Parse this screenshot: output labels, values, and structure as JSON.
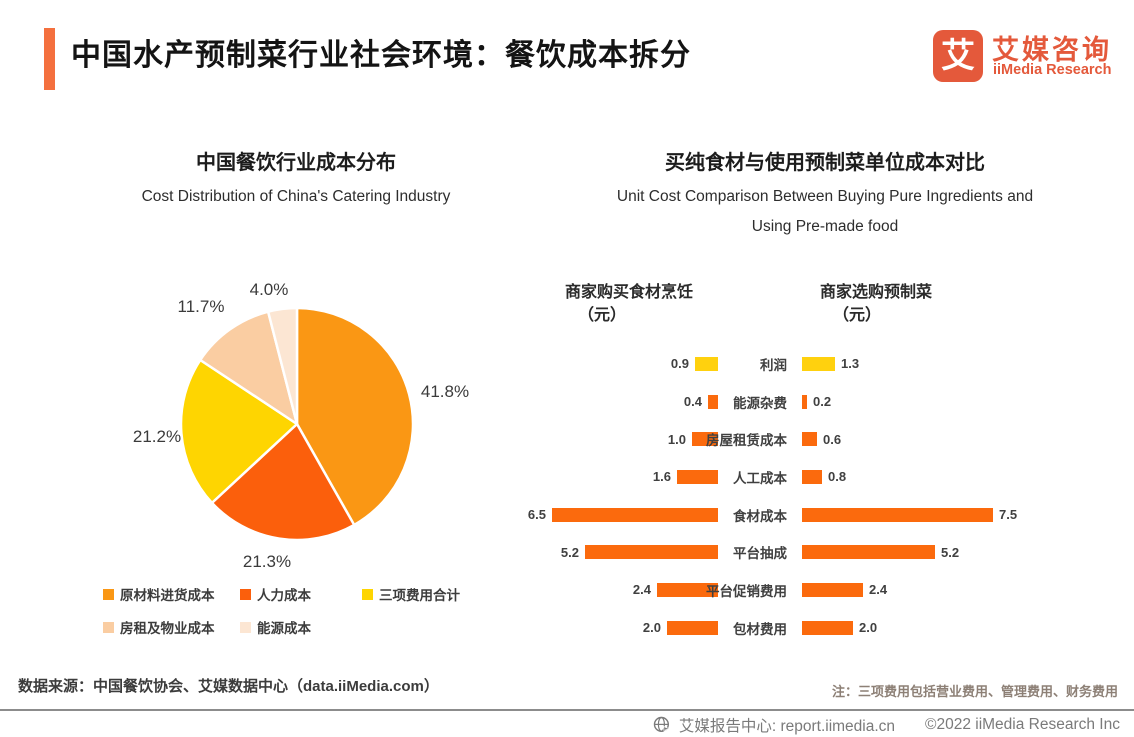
{
  "header": {
    "title": "中国水产预制菜行业社会环境：餐饮成本拆分",
    "logo": {
      "glyph": "艾",
      "name_cn": "艾媒咨询",
      "name_en": "iiMedia Research"
    }
  },
  "colors": {
    "accent": "#F4703E",
    "brand": "#E4593B",
    "bar_orange": "#FB6A0D",
    "bar_yellow": "#FFD10E"
  },
  "chart_data": [
    {
      "type": "pie",
      "title": "中国餐饮行业成本分布",
      "subtitle": "Cost Distribution of China's Catering Industry",
      "labels": [
        "原材料进货成本",
        "人力成本",
        "三项费用合计",
        "房租及物业成本",
        "能源成本"
      ],
      "values": [
        41.8,
        21.3,
        21.2,
        11.7,
        4.0
      ],
      "display_labels": [
        "41.8%",
        "21.3%",
        "21.2%",
        "11.7%",
        "4.0%"
      ],
      "colors": [
        "#FA9714",
        "#FB5F0C",
        "#FED501",
        "#FACDA2",
        "#FCE6D3"
      ],
      "start_angle_deg": 0,
      "direction": "clockwise",
      "legend_position": "bottom"
    },
    {
      "type": "bar",
      "subtype": "tornado",
      "title": "买纯食材与使用预制菜单位成本对比",
      "subtitle_lines": [
        "Unit Cost Comparison Between Buying Pure Ingredients and",
        "Using Pre-made food"
      ],
      "left_header": "商家购买食材烹饪",
      "right_header": "商家选购预制菜",
      "unit_label": "（元）",
      "categories": [
        "利润",
        "能源杂费",
        "房屋租赁成本",
        "人工成本",
        "食材成本",
        "平台抽成",
        "平台促销费用",
        "包材费用"
      ],
      "series": [
        {
          "name": "商家购买食材烹饪（元）",
          "values": [
            0.9,
            0.4,
            1.0,
            1.6,
            6.5,
            5.2,
            2.4,
            2.0
          ]
        },
        {
          "name": "商家选购预制菜（元）",
          "values": [
            1.3,
            0.2,
            0.6,
            0.8,
            7.5,
            5.2,
            2.4,
            2.0
          ]
        }
      ],
      "row_colors": [
        "#FFD10E",
        "#FB6A0D",
        "#FB6A0D",
        "#FB6A0D",
        "#FB6A0D",
        "#FB6A0D",
        "#FB6A0D",
        "#FB6A0D"
      ],
      "x_max": 7.5
    }
  ],
  "source": "数据来源：中国餐饮协会、艾媒数据中心（data.iiMedia.com）",
  "note": "注：三项费用包括营业费用、管理费用、财务费用",
  "footer": {
    "site": "艾媒报告中心: report.iimedia.cn",
    "copyright": "©2022  iiMedia Research Inc"
  }
}
